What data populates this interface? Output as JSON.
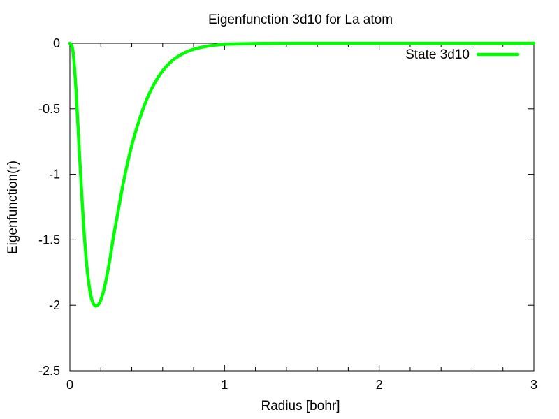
{
  "chart_data": {
    "type": "line",
    "title": "Eigenfunction 3d10 for La atom",
    "xlabel": "Radius [bohr]",
    "ylabel": "Eigenfunction(r)",
    "xlim": [
      0,
      3
    ],
    "ylim": [
      -2.5,
      0
    ],
    "x_ticks": [
      "0",
      "1",
      "2",
      "3"
    ],
    "y_ticks": [
      "0",
      "-0.5",
      "-1",
      "-1.5",
      "-2",
      "-2.5"
    ],
    "grid": false,
    "legend_position": "top-right",
    "series": [
      {
        "name": "State 3d10",
        "color": "#00ff00",
        "x": [
          0,
          0.02,
          0.04,
          0.06,
          0.08,
          0.1,
          0.12,
          0.14,
          0.16,
          0.18,
          0.2,
          0.22,
          0.24,
          0.26,
          0.28,
          0.3,
          0.35,
          0.4,
          0.45,
          0.5,
          0.55,
          0.6,
          0.65,
          0.7,
          0.75,
          0.8,
          0.85,
          0.9,
          0.95,
          1.0,
          1.1,
          1.2,
          1.3,
          1.5,
          2.0,
          2.5,
          3.0
        ],
        "y": [
          0,
          -0.06,
          -0.36,
          -0.8,
          -1.22,
          -1.57,
          -1.81,
          -1.95,
          -2.0,
          -2.0,
          -1.96,
          -1.88,
          -1.77,
          -1.64,
          -1.49,
          -1.36,
          -1.04,
          -0.78,
          -0.58,
          -0.42,
          -0.3,
          -0.21,
          -0.145,
          -0.1,
          -0.068,
          -0.046,
          -0.031,
          -0.02,
          -0.013,
          -0.008,
          -0.004,
          -0.002,
          -0.001,
          0,
          0,
          0,
          0
        ]
      }
    ]
  }
}
